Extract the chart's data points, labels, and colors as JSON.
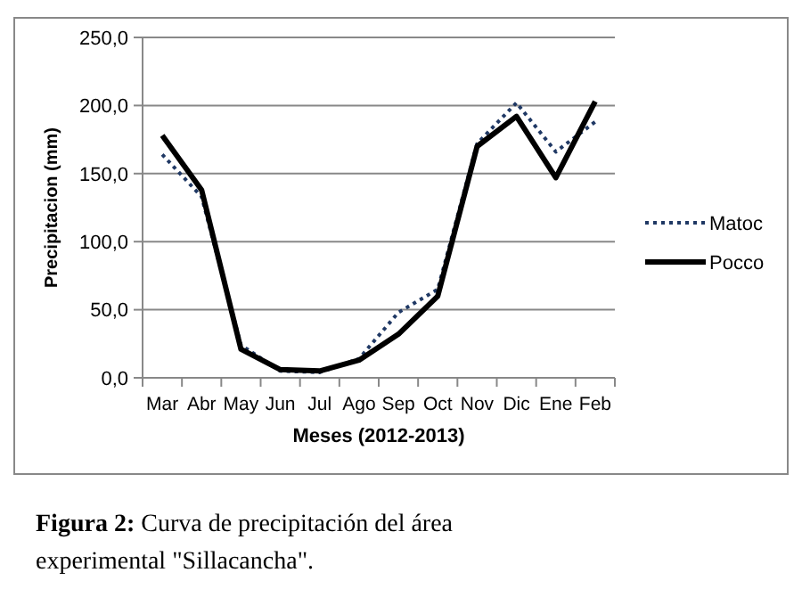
{
  "chart_data": {
    "type": "line",
    "xlabel": "Meses (2012-2013)",
    "ylabel": "Precipitacion (mm)",
    "categories": [
      "Mar",
      "Abr",
      "May",
      "Jun",
      "Jul",
      "Ago",
      "Sep",
      "Oct",
      "Nov",
      "Dic",
      "Ene",
      "Feb"
    ],
    "series": [
      {
        "name": "Matoc",
        "color": "#1f3864",
        "line_style": "dotted",
        "values": [
          164,
          133,
          24,
          5,
          4,
          14,
          48,
          65,
          172,
          202,
          166,
          188
        ]
      },
      {
        "name": "Pocco",
        "color": "#000000",
        "line_style": "solid",
        "values": [
          178,
          138,
          21,
          6,
          5,
          13,
          32,
          60,
          170,
          192,
          147,
          203
        ]
      }
    ],
    "ylim": [
      0,
      250
    ],
    "yticks": [
      {
        "value": 0,
        "label": "0,0"
      },
      {
        "value": 50,
        "label": "50,0"
      },
      {
        "value": 100,
        "label": "100,0"
      },
      {
        "value": 150,
        "label": "150,0"
      },
      {
        "value": 200,
        "label": "200,0"
      },
      {
        "value": 250,
        "label": "250,0"
      }
    ],
    "grid": "y",
    "legend": "right",
    "marker": "none",
    "annotations": [
      "Figura 2: Curva de precipitación del área experimental \"Sillacancha\"."
    ]
  }
}
